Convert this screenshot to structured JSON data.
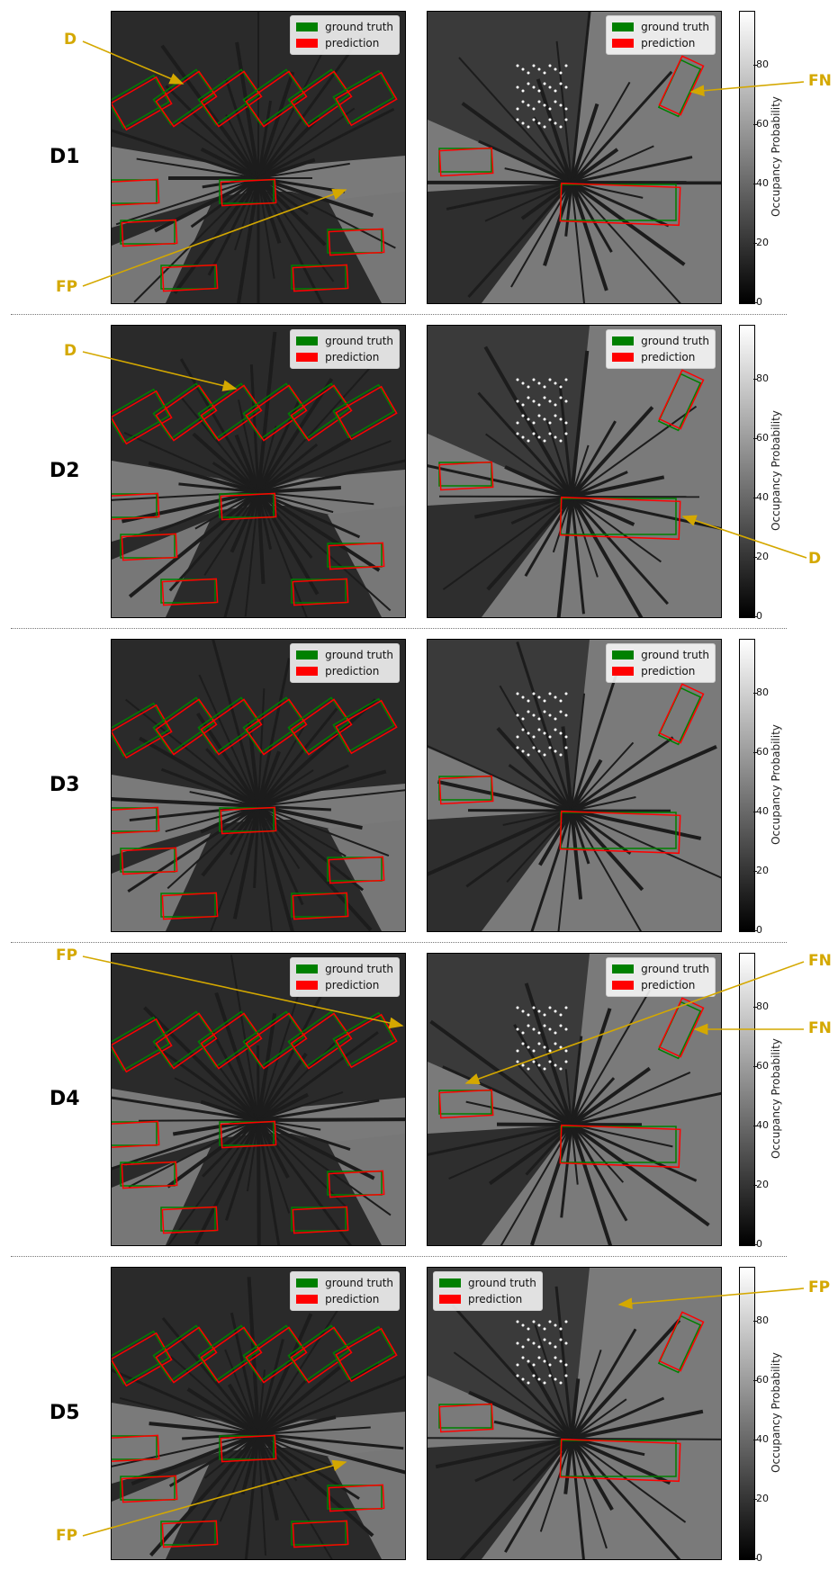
{
  "legend": {
    "ground_truth": "ground truth",
    "prediction": "prediction"
  },
  "colorbar": {
    "label": "Occupancy Probability",
    "ticks": [
      "0",
      "20",
      "40",
      "60",
      "80"
    ]
  },
  "colors": {
    "ground_truth": "#008000",
    "prediction": "#ff0000",
    "annotation": "#d4a800"
  },
  "rows": [
    {
      "label": "D1"
    },
    {
      "label": "D2"
    },
    {
      "label": "D3"
    },
    {
      "label": "D4"
    },
    {
      "label": "D5"
    }
  ],
  "annotations": {
    "d1_left_top": "D",
    "d1_left_bottom": "FP",
    "d1_right": "FN",
    "d2_left": "D",
    "d2_right": "D",
    "d4_left": "FP",
    "d4_right_top": "FN",
    "d4_right_mid": "FN",
    "d5_right": "FP",
    "d5_left": "FP"
  }
}
